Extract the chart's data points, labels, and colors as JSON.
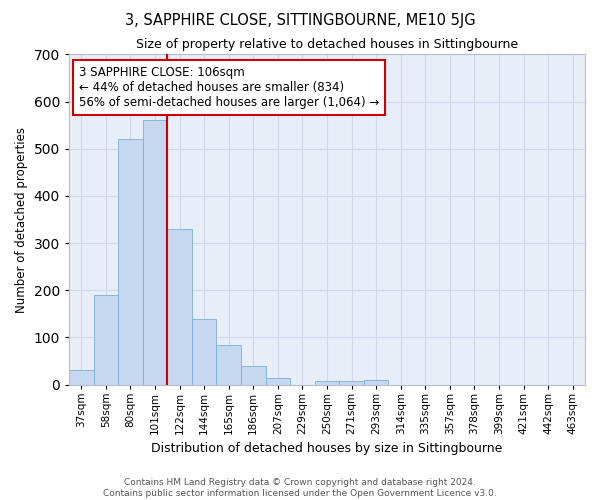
{
  "title": "3, SAPPHIRE CLOSE, SITTINGBOURNE, ME10 5JG",
  "subtitle": "Size of property relative to detached houses in Sittingbourne",
  "xlabel": "Distribution of detached houses by size in Sittingbourne",
  "ylabel": "Number of detached properties",
  "footer_line1": "Contains HM Land Registry data © Crown copyright and database right 2024.",
  "footer_line2": "Contains public sector information licensed under the Open Government Licence v3.0.",
  "annotation_line0": "3 SAPPHIRE CLOSE: 106sqm",
  "annotation_line1": "← 44% of detached houses are smaller (834)",
  "annotation_line2": "56% of semi-detached houses are larger (1,064) →",
  "bar_color": "#c5d8f0",
  "bar_edge_color": "#7bafd4",
  "vline_color": "#cc0000",
  "annotation_box_edgecolor": "#cc0000",
  "grid_color": "#d0d8e8",
  "bg_color": "#e8eef8",
  "categories": [
    "37sqm",
    "58sqm",
    "80sqm",
    "101sqm",
    "122sqm",
    "144sqm",
    "165sqm",
    "186sqm",
    "207sqm",
    "229sqm",
    "250sqm",
    "271sqm",
    "293sqm",
    "314sqm",
    "335sqm",
    "357sqm",
    "378sqm",
    "399sqm",
    "421sqm",
    "442sqm",
    "463sqm"
  ],
  "values": [
    32,
    190,
    520,
    560,
    330,
    140,
    85,
    40,
    13,
    0,
    8,
    8,
    10,
    0,
    0,
    0,
    0,
    0,
    0,
    0,
    0
  ],
  "ylim": [
    0,
    700
  ],
  "yticks": [
    0,
    100,
    200,
    300,
    400,
    500,
    600,
    700
  ],
  "vline_position": 3.5
}
